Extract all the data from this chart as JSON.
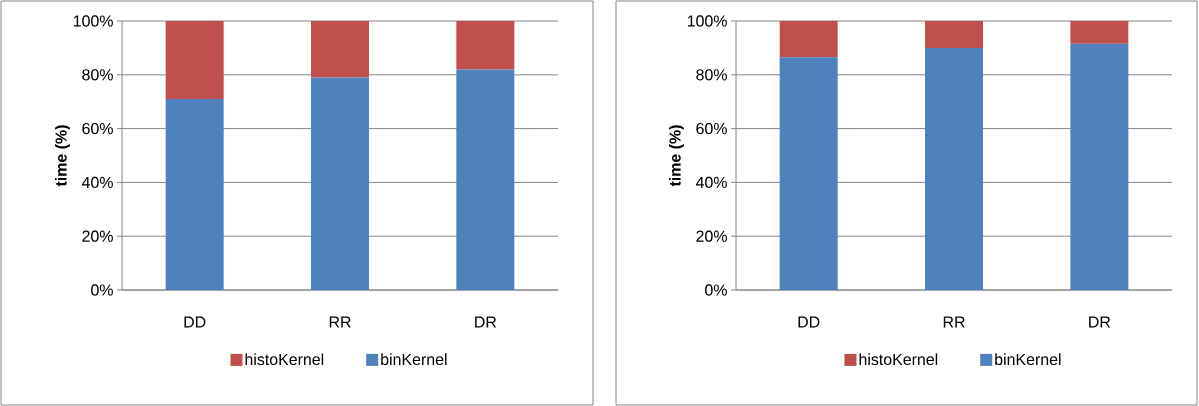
{
  "chart_data": [
    {
      "type": "bar",
      "stacked": true,
      "categories": [
        "DD",
        "RR",
        "DR"
      ],
      "ylabel": "time (%)",
      "ylim": [
        0,
        100
      ],
      "grid": "y",
      "legend": "bottom",
      "yticks": [
        {
          "value": 0,
          "label": "0%"
        },
        {
          "value": 20,
          "label": "20%"
        },
        {
          "value": 40,
          "label": "40%"
        },
        {
          "value": 60,
          "label": "60%"
        },
        {
          "value": 80,
          "label": "80%"
        },
        {
          "value": 100,
          "label": "100%"
        }
      ],
      "series": [
        {
          "name": "binKernel",
          "color": "#4f81bd",
          "values": [
            71,
            79,
            82
          ]
        },
        {
          "name": "histoKernel",
          "color": "#c0504d",
          "values": [
            29,
            21,
            18
          ]
        }
      ]
    },
    {
      "type": "bar",
      "stacked": true,
      "categories": [
        "DD",
        "RR",
        "DR"
      ],
      "ylabel": "time (%)",
      "ylim": [
        0,
        100
      ],
      "grid": "y",
      "legend": "bottom",
      "yticks": [
        {
          "value": 0,
          "label": "0%"
        },
        {
          "value": 20,
          "label": "20%"
        },
        {
          "value": 40,
          "label": "40%"
        },
        {
          "value": 60,
          "label": "60%"
        },
        {
          "value": 80,
          "label": "80%"
        },
        {
          "value": 100,
          "label": "100%"
        }
      ],
      "series": [
        {
          "name": "binKernel",
          "color": "#4f81bd",
          "values": [
            86.5,
            90,
            91.5
          ]
        },
        {
          "name": "histoKernel",
          "color": "#c0504d",
          "values": [
            13.5,
            10,
            8.5
          ]
        }
      ]
    }
  ]
}
